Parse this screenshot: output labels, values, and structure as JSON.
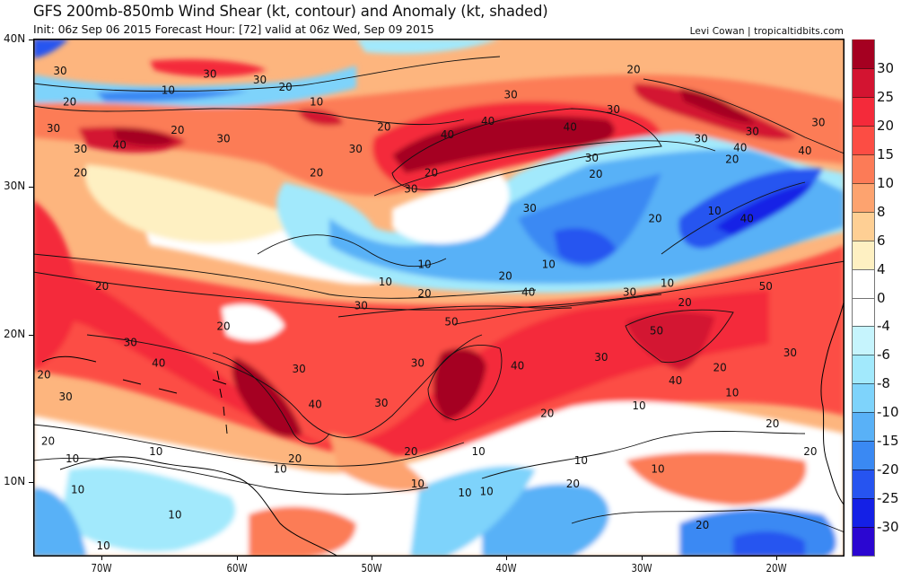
{
  "header": {
    "title": "GFS 200mb-850mb Wind Shear (kt, contour) and Anomaly (kt, shaded)",
    "subtitle": "Init: 06z Sep 06 2015   Forecast Hour: [72]   valid at 06z Wed, Sep 09 2015",
    "credit": "Levi Cowan | tropicaltidbits.com"
  },
  "map": {
    "lon_range": [
      -75,
      -15
    ],
    "lat_range": [
      5,
      40
    ],
    "lat_ticks": [
      {
        "lat": 40,
        "label": "40N"
      },
      {
        "lat": 30,
        "label": "30N"
      },
      {
        "lat": 20,
        "label": "20N"
      },
      {
        "lat": 10,
        "label": "10N"
      }
    ],
    "lon_ticks": [
      {
        "lon": -70,
        "label": "70W"
      },
      {
        "lon": -60,
        "label": "60W"
      },
      {
        "lon": -50,
        "label": "50W"
      },
      {
        "lon": -40,
        "label": "40W"
      },
      {
        "lon": -30,
        "label": "30W"
      },
      {
        "lon": -20,
        "label": "20W"
      }
    ],
    "contour_labels": [
      {
        "lon": -73.0,
        "lat": 37.8,
        "text": "30"
      },
      {
        "lon": -72.3,
        "lat": 35.7,
        "text": "20"
      },
      {
        "lon": -73.5,
        "lat": 33.9,
        "text": "30"
      },
      {
        "lon": -71.5,
        "lat": 32.5,
        "text": "30"
      },
      {
        "lon": -68.6,
        "lat": 32.8,
        "text": "40"
      },
      {
        "lon": -71.5,
        "lat": 30.9,
        "text": "20"
      },
      {
        "lon": -61.9,
        "lat": 37.6,
        "text": "30"
      },
      {
        "lon": -65.0,
        "lat": 36.5,
        "text": "10"
      },
      {
        "lon": -58.2,
        "lat": 37.2,
        "text": "30"
      },
      {
        "lon": -56.3,
        "lat": 36.7,
        "text": "20"
      },
      {
        "lon": -54.0,
        "lat": 35.7,
        "text": "10"
      },
      {
        "lon": -64.3,
        "lat": 33.8,
        "text": "20"
      },
      {
        "lon": -60.9,
        "lat": 33.2,
        "text": "30"
      },
      {
        "lon": -51.1,
        "lat": 32.5,
        "text": "30"
      },
      {
        "lon": -54.0,
        "lat": 30.9,
        "text": "20"
      },
      {
        "lon": -49.0,
        "lat": 34.0,
        "text": "20"
      },
      {
        "lon": -44.3,
        "lat": 33.5,
        "text": "40"
      },
      {
        "lon": -39.6,
        "lat": 36.2,
        "text": "30"
      },
      {
        "lon": -41.3,
        "lat": 34.4,
        "text": "40"
      },
      {
        "lon": -35.2,
        "lat": 34.0,
        "text": "40"
      },
      {
        "lon": -33.6,
        "lat": 31.9,
        "text": "30"
      },
      {
        "lon": -47.0,
        "lat": 29.8,
        "text": "30"
      },
      {
        "lon": -45.5,
        "lat": 30.9,
        "text": "20"
      },
      {
        "lon": -33.3,
        "lat": 30.8,
        "text": "20"
      },
      {
        "lon": -30.5,
        "lat": 37.9,
        "text": "20"
      },
      {
        "lon": -32.0,
        "lat": 35.2,
        "text": "30"
      },
      {
        "lon": -25.5,
        "lat": 33.2,
        "text": "30"
      },
      {
        "lon": -21.7,
        "lat": 33.7,
        "text": "30"
      },
      {
        "lon": -22.6,
        "lat": 32.6,
        "text": "40"
      },
      {
        "lon": -17.8,
        "lat": 32.4,
        "text": "40"
      },
      {
        "lon": -23.2,
        "lat": 31.8,
        "text": "20"
      },
      {
        "lon": -16.8,
        "lat": 34.3,
        "text": "30"
      },
      {
        "lon": -22.1,
        "lat": 27.8,
        "text": "40"
      },
      {
        "lon": -24.5,
        "lat": 28.3,
        "text": "10"
      },
      {
        "lon": -28.9,
        "lat": 27.8,
        "text": "20"
      },
      {
        "lon": -38.2,
        "lat": 28.5,
        "text": "30"
      },
      {
        "lon": -36.8,
        "lat": 24.7,
        "text": "10"
      },
      {
        "lon": -40.0,
        "lat": 23.9,
        "text": "20"
      },
      {
        "lon": -46.0,
        "lat": 24.7,
        "text": "10"
      },
      {
        "lon": -48.9,
        "lat": 23.5,
        "text": "10"
      },
      {
        "lon": -46.0,
        "lat": 22.7,
        "text": "20"
      },
      {
        "lon": -50.7,
        "lat": 21.9,
        "text": "30"
      },
      {
        "lon": -38.3,
        "lat": 22.8,
        "text": "40"
      },
      {
        "lon": -30.8,
        "lat": 22.8,
        "text": "30"
      },
      {
        "lon": -26.7,
        "lat": 22.1,
        "text": "20"
      },
      {
        "lon": -28.0,
        "lat": 23.4,
        "text": "10"
      },
      {
        "lon": -20.7,
        "lat": 23.2,
        "text": "50"
      },
      {
        "lon": -44.0,
        "lat": 20.8,
        "text": "50"
      },
      {
        "lon": -28.8,
        "lat": 20.2,
        "text": "50"
      },
      {
        "lon": -69.9,
        "lat": 23.2,
        "text": "20"
      },
      {
        "lon": -60.9,
        "lat": 20.5,
        "text": "20"
      },
      {
        "lon": -67.8,
        "lat": 19.4,
        "text": "30"
      },
      {
        "lon": -65.7,
        "lat": 18.0,
        "text": "40"
      },
      {
        "lon": -74.2,
        "lat": 17.2,
        "text": "20"
      },
      {
        "lon": -55.3,
        "lat": 17.6,
        "text": "30"
      },
      {
        "lon": -46.5,
        "lat": 18.0,
        "text": "30"
      },
      {
        "lon": -39.1,
        "lat": 17.8,
        "text": "40"
      },
      {
        "lon": -32.9,
        "lat": 18.4,
        "text": "30"
      },
      {
        "lon": -27.4,
        "lat": 16.8,
        "text": "40"
      },
      {
        "lon": -24.1,
        "lat": 17.7,
        "text": "20"
      },
      {
        "lon": -23.2,
        "lat": 16.0,
        "text": "10"
      },
      {
        "lon": -18.9,
        "lat": 18.7,
        "text": "30"
      },
      {
        "lon": -72.6,
        "lat": 15.7,
        "text": "30"
      },
      {
        "lon": -54.1,
        "lat": 15.2,
        "text": "40"
      },
      {
        "lon": -49.2,
        "lat": 15.3,
        "text": "30"
      },
      {
        "lon": -36.9,
        "lat": 14.6,
        "text": "20"
      },
      {
        "lon": -30.1,
        "lat": 15.1,
        "text": "10"
      },
      {
        "lon": -20.2,
        "lat": 13.9,
        "text": "20"
      },
      {
        "lon": -73.9,
        "lat": 12.7,
        "text": "20"
      },
      {
        "lon": -65.9,
        "lat": 12.0,
        "text": "10"
      },
      {
        "lon": -72.1,
        "lat": 11.5,
        "text": "10"
      },
      {
        "lon": -76.3,
        "lat": 10.8,
        "text": "10"
      },
      {
        "lon": -55.6,
        "lat": 11.5,
        "text": "20"
      },
      {
        "lon": -56.7,
        "lat": 10.8,
        "text": "10"
      },
      {
        "lon": -47.0,
        "lat": 12.0,
        "text": "20"
      },
      {
        "lon": -42.0,
        "lat": 12.0,
        "text": "10"
      },
      {
        "lon": -34.4,
        "lat": 11.4,
        "text": "10"
      },
      {
        "lon": -28.7,
        "lat": 10.8,
        "text": "10"
      },
      {
        "lon": -17.4,
        "lat": 12.0,
        "text": "20"
      },
      {
        "lon": -41.4,
        "lat": 9.3,
        "text": "10"
      },
      {
        "lon": -46.5,
        "lat": 9.8,
        "text": "10"
      },
      {
        "lon": -43.0,
        "lat": 9.2,
        "text": "10"
      },
      {
        "lon": -35.0,
        "lat": 9.8,
        "text": "20"
      },
      {
        "lon": -71.7,
        "lat": 9.4,
        "text": "10"
      },
      {
        "lon": -25.4,
        "lat": 7.0,
        "text": "20"
      },
      {
        "lon": -64.5,
        "lat": 7.7,
        "text": "10"
      },
      {
        "lon": -69.8,
        "lat": 5.6,
        "text": "10"
      }
    ]
  },
  "colorbar": {
    "levels": [
      "30",
      "25",
      "20",
      "15",
      "10",
      "8",
      "6",
      "4",
      "0",
      "-4",
      "-6",
      "-8",
      "-10",
      "-15",
      "-20",
      "-25",
      "-30"
    ],
    "colors": [
      "#a50021",
      "#d31431",
      "#f42a3a",
      "#fc4d44",
      "#fc7b57",
      "#fda36f",
      "#fecf94",
      "#fef0c2",
      "#ffffff",
      "#ffffff",
      "#c6f4fd",
      "#a2e9fc",
      "#7ed3fb",
      "#59b1f7",
      "#3a89f3",
      "#2654f0",
      "#1420e6",
      "#2b06d1"
    ]
  }
}
